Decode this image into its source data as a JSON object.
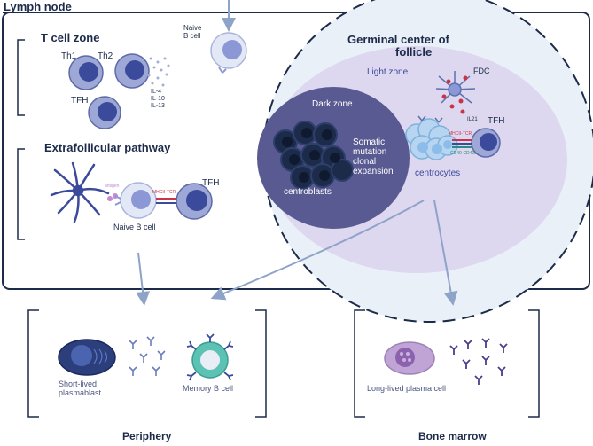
{
  "lymph_node": {
    "title": "Lymph node"
  },
  "t_cell_zone": {
    "title": "T cell zone",
    "cells": {
      "th1": "Th1",
      "th2": "Th2",
      "tfh": "TFH"
    },
    "cytokines": [
      "IL-4",
      "IL-10",
      "IL-13"
    ]
  },
  "naive_b_cell_top": {
    "label_line1": "Naive",
    "label_line2": "B cell"
  },
  "germinal_center": {
    "title_line1": "Germinal center of",
    "title_line2": "follicle",
    "light_zone": "Light zone",
    "dark_zone": "Dark zone",
    "somatic": [
      "Somatic",
      "mutation",
      "clonal",
      "expansion"
    ],
    "centroblasts": "centroblasts",
    "centrocytes": "centrocytes",
    "fdc": "FDC",
    "il21": "IL21",
    "tfh": "TFH",
    "mhc_tcr": "MHCII-TCR",
    "cd40": "CD40-CD40L"
  },
  "extrafollicular": {
    "title": "Extrafollicular pathway",
    "antigen": "antigen",
    "mhc_tcr": "MHCII-TCR",
    "tfh": "TFH",
    "naive_b_cell": "Naive B cell"
  },
  "periphery": {
    "title": "Periphery",
    "plasmablast_line1": "Short-lived",
    "plasmablast_line2": "plasmablast",
    "memory_b_cell": "Memory B cell"
  },
  "bone_marrow": {
    "title": "Bone marrow",
    "plasma_cell": "Long-lived plasma cell"
  },
  "colors": {
    "navy": "#1d2b4a",
    "dark_zone": "#5a5a92",
    "light_zone": "#ddd7ef",
    "germinal_bg": "#eaf0f8",
    "lymphocyte": "#9ea8d6",
    "nucleus": "#3b4a9a",
    "arrow": "#8ea3c8",
    "centrocyte": "#b7d4f0",
    "memory_b": "#5bc2b4",
    "plasma": "#c0a4d6",
    "plasmablast": "#2c3e7c"
  }
}
